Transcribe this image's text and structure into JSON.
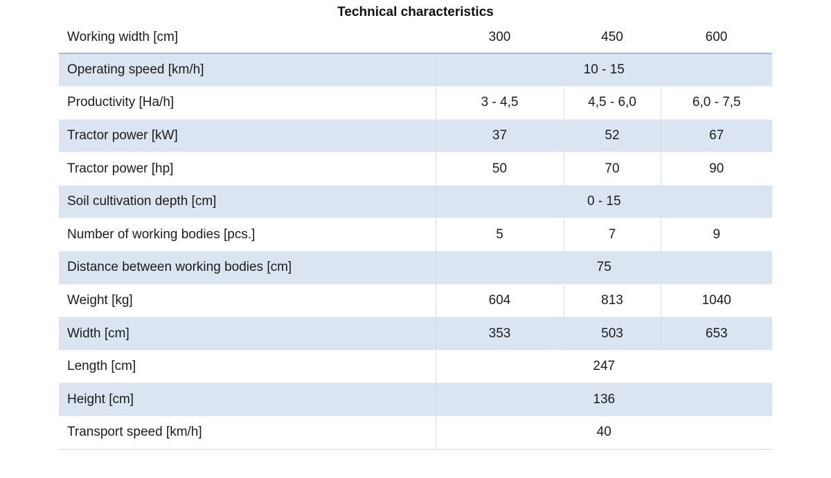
{
  "chart_data": {
    "type": "table",
    "title": "Technical characteristics",
    "header": {
      "label": "Working width [cm]",
      "values": [
        "300",
        "450",
        "600"
      ]
    },
    "rows": [
      {
        "label": "Operating speed [km/h]",
        "span": "10 - 15"
      },
      {
        "label": "Productivity [Ha/h]",
        "values": [
          "3 - 4,5",
          "4,5 - 6,0",
          "6,0 - 7,5"
        ]
      },
      {
        "label": "Tractor power [kW]",
        "values": [
          "37",
          "52",
          "67"
        ]
      },
      {
        "label": "Tractor power [hp]",
        "values": [
          "50",
          "70",
          "90"
        ]
      },
      {
        "label": "Soil cultivation depth [cm]",
        "span": "0 - 15"
      },
      {
        "label": "Number of working bodies [pcs.]",
        "values": [
          "5",
          "7",
          "9"
        ]
      },
      {
        "label": "Distance between working bodies [cm]",
        "span": "75"
      },
      {
        "label": "Weight [kg]",
        "values": [
          "604",
          "813",
          "1040"
        ]
      },
      {
        "label": "Width [cm]",
        "values": [
          "353",
          "503",
          "653"
        ]
      },
      {
        "label": "Length [cm]",
        "span": "247"
      },
      {
        "label": "Height [cm]",
        "span": "136"
      },
      {
        "label": "Transport speed [km/h]",
        "span": "40"
      }
    ],
    "layout": {
      "shaded_row_indexes": [
        0,
        2,
        4,
        6,
        8,
        10
      ],
      "grid": "horizontal header rule, light column dividers, bottom rule"
    }
  },
  "colors": {
    "shaded_row": "#dbe5f1",
    "header_rule": "#a2bbd5",
    "column_divider": "#d6dce3",
    "row_divider": "#eef3f8",
    "bottom_rule": "#ccd7da",
    "text": "#1b1b1b"
  }
}
